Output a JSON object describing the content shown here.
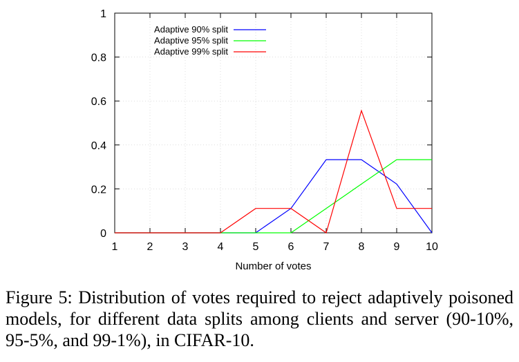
{
  "chart_data": {
    "type": "line",
    "title": "",
    "xlabel": "Number of votes",
    "ylabel": "",
    "xlim": [
      1,
      10
    ],
    "ylim": [
      0,
      1
    ],
    "x": [
      1,
      2,
      3,
      4,
      5,
      6,
      7,
      8,
      9,
      10
    ],
    "xticks": [
      "1",
      "2",
      "3",
      "4",
      "5",
      "6",
      "7",
      "8",
      "9",
      "10"
    ],
    "yticks": [
      "0",
      "0.2",
      "0.4",
      "0.6",
      "0.8",
      "1"
    ],
    "grid": true,
    "legend_position": "top-left",
    "series": [
      {
        "name": "Adaptive 90% split",
        "color": "#0000ff",
        "values": [
          0,
          0,
          0,
          0,
          0,
          0.111,
          0.333,
          0.333,
          0.222,
          0
        ]
      },
      {
        "name": "Adaptive 95% split",
        "color": "#00ff00",
        "values": [
          0,
          0,
          0,
          0,
          0,
          0,
          0.111,
          0.222,
          0.333,
          0.333
        ]
      },
      {
        "name": "Adaptive 99% split",
        "color": "#ff0000",
        "values": [
          0,
          0,
          0,
          0,
          0.111,
          0.111,
          0,
          0.556,
          0.111,
          0.111
        ]
      }
    ]
  },
  "caption": "Figure 5: Distribution of votes required to reject adaptively poisoned models, for different data splits among clients and server (90-10%, 95-5%, and 99-1%), in CIFAR-10."
}
